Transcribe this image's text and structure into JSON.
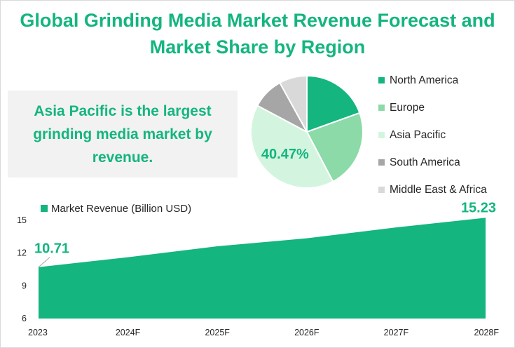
{
  "title": "Global Grinding Media Market Revenue Forecast and Market Share by Region",
  "callout_text": "Asia Pacific is the largest grinding media market by revenue.",
  "colors": {
    "accent": "#14b57f",
    "callout_bg": "#f2f2f2"
  },
  "chart_data": [
    {
      "type": "pie",
      "title": "",
      "slices": [
        {
          "name": "North America",
          "value": 19.5,
          "color": "#14b57f"
        },
        {
          "name": "Europe",
          "value": 22.8,
          "color": "#8bdaa8"
        },
        {
          "name": "Asia Pacific",
          "value": 40.47,
          "color": "#d3f5df"
        },
        {
          "name": "South America",
          "value": 9.2,
          "color": "#a6a6a6"
        },
        {
          "name": "Middle East & Africa",
          "value": 8.03,
          "color": "#d9d9d9"
        }
      ],
      "data_labels": [
        {
          "slice": "Asia Pacific",
          "text": "40.47%"
        }
      ],
      "legend_position": "right"
    },
    {
      "type": "area",
      "title": "",
      "series": [
        {
          "name": "Market Revenue (Billion USD)",
          "color": "#14b57f",
          "values": [
            10.71,
            11.62,
            12.62,
            13.35,
            14.35,
            15.23
          ]
        }
      ],
      "categories": [
        "2023",
        "2024F",
        "2025F",
        "2026F",
        "2027F",
        "2028F"
      ],
      "yticks": [
        "6",
        "9",
        "12",
        "15"
      ],
      "ylim": [
        6,
        15
      ],
      "grid": false,
      "legend_position": "top-left",
      "data_labels": [
        {
          "index": 0,
          "text": "10.71"
        },
        {
          "index": 5,
          "text": "15.23"
        }
      ]
    }
  ]
}
